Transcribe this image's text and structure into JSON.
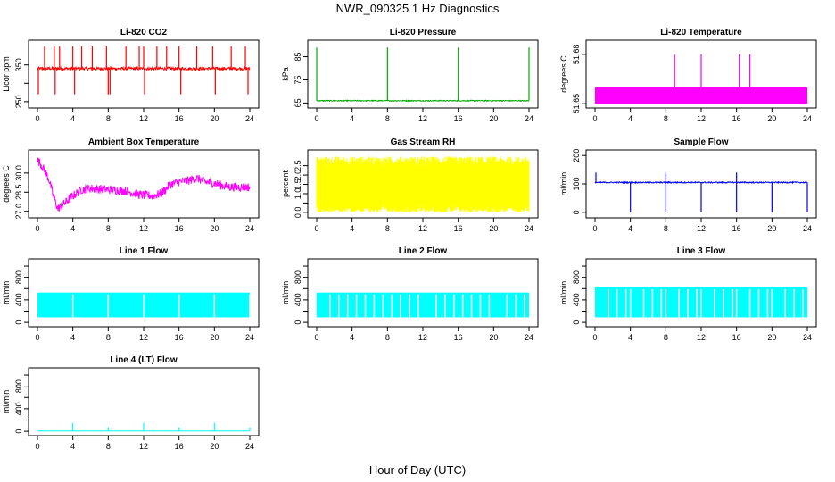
{
  "figure": {
    "title": "NWR_090325  1 Hz Diagnostics",
    "xlabel": "Hour of Day (UTC)"
  },
  "chart_data": [
    {
      "type": "line",
      "title": "Li-820 CO2",
      "ylabel": "Licor ppm",
      "color": "#ff0000",
      "xlim": [
        0,
        24
      ],
      "xticks": [
        0,
        4,
        8,
        12,
        16,
        20,
        24
      ],
      "ylim": [
        240,
        410
      ],
      "yticks": [
        250,
        300,
        350
      ],
      "ytick_labels": [
        "250",
        "",
        "350"
      ],
      "series": [
        {
          "baseline": 340,
          "noise": 4,
          "spikes_up": [
            0.8,
            1.9,
            2.5,
            4.0,
            5.0,
            6.2,
            7.8,
            10.0,
            11.5,
            12.0,
            13.5,
            14.6,
            16.0,
            18.0,
            19.8,
            21.9,
            23.5
          ],
          "spike_up_top": 400,
          "spikes_down": [
            0.1,
            2.0,
            4.2,
            8.0,
            8.2,
            12.1,
            16.2,
            20.1,
            23.8
          ],
          "spike_down_bottom": 270
        }
      ]
    },
    {
      "type": "line",
      "title": "Li-820 Pressure",
      "ylabel": "kPa",
      "color": "#00aa00",
      "xlim": [
        0,
        24
      ],
      "xticks": [
        0,
        4,
        8,
        12,
        16,
        20,
        24
      ],
      "ylim": [
        64,
        91
      ],
      "yticks": [
        65,
        75,
        85
      ],
      "series": [
        {
          "baseline": 66,
          "noise": 0.2,
          "spikes_up": [
            0.0,
            8.0,
            16.0,
            24.0
          ],
          "spike_up_top": 89
        }
      ]
    },
    {
      "type": "area",
      "title": "Li-820 Temperature",
      "ylabel": "degrees C",
      "color": "#ff00ff",
      "xlim": [
        0,
        24
      ],
      "xticks": [
        0,
        4,
        8,
        12,
        16,
        20,
        24
      ],
      "ylim": [
        51.649,
        51.687
      ],
      "yticks": [
        51.65,
        51.68
      ],
      "ytick_labels": [
        "51.65",
        "51.68"
      ],
      "band": [
        51.65,
        51.66
      ],
      "spikes_up": [
        9.0,
        12.0,
        16.3,
        17.5
      ],
      "spike_up_top": 51.68
    },
    {
      "type": "line",
      "title": "Ambient Box Temperature",
      "ylabel": "degrees C",
      "color": "#ff00ff",
      "xlim": [
        0,
        24
      ],
      "xticks": [
        0,
        4,
        8,
        12,
        16,
        20,
        24
      ],
      "ylim": [
        26.7,
        31.6
      ],
      "yticks": [
        27.0,
        28.5,
        30.0
      ],
      "ytick_labels": [
        "27.0",
        "28.5",
        "30.0"
      ],
      "series": [
        {
          "x": [
            0,
            0.3,
            0.8,
            1.3,
            1.8,
            2.3,
            3.0,
            4.0,
            5.0,
            6.0,
            8.0,
            10.0,
            11.5,
            13.0,
            14.0,
            15.0,
            16.0,
            17.0,
            18.0,
            19.0,
            20.0,
            21.0,
            22.0,
            23.0,
            24.0
          ],
          "y": [
            31.0,
            30.8,
            30.2,
            29.5,
            28.2,
            27.2,
            27.6,
            28.2,
            28.7,
            28.8,
            28.7,
            28.6,
            28.3,
            28.2,
            28.4,
            29.1,
            29.3,
            29.4,
            29.6,
            29.3,
            29.2,
            29.0,
            28.9,
            28.9,
            28.9
          ],
          "noise": 0.35
        }
      ]
    },
    {
      "type": "area",
      "title": "Gas Stream RH",
      "ylabel": "percent",
      "color": "#ffff00",
      "xlim": [
        0,
        24
      ],
      "xticks": [
        0,
        4,
        8,
        12,
        16,
        20,
        24
      ],
      "ylim": [
        -0.15,
        3.2
      ],
      "yticks": [
        0.0,
        0.5,
        1.0,
        1.5,
        2.0,
        2.5
      ],
      "ytick_labels": [
        "0.0",
        "",
        "1.0",
        "1.5",
        "2.0",
        "2.5"
      ],
      "band": [
        0.4,
        2.4
      ],
      "noise": 0.5
    },
    {
      "type": "line",
      "title": "Sample Flow",
      "ylabel": "ml/min",
      "color": "#0000ff",
      "xlim": [
        0,
        24
      ],
      "xticks": [
        0,
        4,
        8,
        12,
        16,
        20,
        24
      ],
      "ylim": [
        -10,
        210
      ],
      "yticks": [
        0,
        100,
        200
      ],
      "series": [
        {
          "baseline": 105,
          "noise": 2,
          "spikes_up": [
            0.1,
            8.0,
            16.0
          ],
          "spike_up_top": 140,
          "spikes_down": [
            4.0,
            8.0,
            12.0,
            16.0,
            20.0,
            24.0
          ],
          "spike_down_bottom": 0
        }
      ]
    },
    {
      "type": "area",
      "title": "Line 1 Flow",
      "ylabel": "ml/min",
      "color": "#00ffff",
      "xlim": [
        0,
        24
      ],
      "xticks": [
        0,
        4,
        8,
        12,
        16,
        20,
        24
      ],
      "ylim": [
        -30,
        1080
      ],
      "yticks": [
        0,
        200,
        400,
        600,
        800,
        1000
      ],
      "ytick_labels": [
        "0",
        "",
        "400",
        "",
        "800",
        ""
      ],
      "band": [
        90,
        530
      ],
      "gaps": [
        4.0,
        8.0,
        12.0,
        16.0,
        20.0,
        24.0
      ]
    },
    {
      "type": "area",
      "title": "Line 2 Flow",
      "ylabel": "ml/min",
      "color": "#00ffff",
      "xlim": [
        0,
        24
      ],
      "xticks": [
        0,
        4,
        8,
        12,
        16,
        20,
        24
      ],
      "ylim": [
        -30,
        1080
      ],
      "yticks": [
        0,
        200,
        400,
        600,
        800,
        1000
      ],
      "ytick_labels": [
        "0",
        "",
        "400",
        "",
        "800",
        ""
      ],
      "band": [
        90,
        530
      ],
      "gaps": [
        1.5,
        2.5,
        3.5,
        4.5,
        5.5,
        6.5,
        7.5,
        8.5,
        9.5,
        10.5,
        11.5,
        13.5,
        14.5,
        15.5,
        16.5,
        17.5,
        18.5,
        19.5,
        21.5,
        22.5,
        23.5
      ]
    },
    {
      "type": "area",
      "title": "Line 3 Flow",
      "ylabel": "ml/min",
      "color": "#00ffff",
      "xlim": [
        0,
        24
      ],
      "xticks": [
        0,
        4,
        8,
        12,
        16,
        20,
        24
      ],
      "ylim": [
        -30,
        1080
      ],
      "yticks": [
        0,
        200,
        400,
        600,
        800,
        1000
      ],
      "ytick_labels": [
        "0",
        "",
        "400",
        "",
        "800",
        ""
      ],
      "band": [
        90,
        620
      ],
      "gaps": [
        1.5,
        2.5,
        3.5,
        4.0,
        5.5,
        6.5,
        7.5,
        8.0,
        9.5,
        10.5,
        11.5,
        12.0,
        13.5,
        14.5,
        15.5,
        16.0,
        17.5,
        18.5,
        19.5,
        20.0,
        21.5,
        22.5,
        23.5
      ]
    },
    {
      "type": "line",
      "title": "Line 4 (LT) Flow",
      "ylabel": "ml/min",
      "color": "#00ffff",
      "xlim": [
        0,
        24
      ],
      "xticks": [
        0,
        4,
        8,
        12,
        16,
        20,
        24
      ],
      "ylim": [
        -30,
        1080
      ],
      "yticks": [
        0,
        200,
        400,
        600,
        800,
        1000
      ],
      "ytick_labels": [
        "0",
        "",
        "400",
        "",
        "800",
        ""
      ],
      "series": [
        {
          "baseline": 5,
          "noise": 2,
          "spikes_up": [
            4.0,
            12.0,
            20.0
          ],
          "spike_up_top": 150,
          "small_spikes": [
            8.0,
            16.0,
            24.0
          ],
          "small_spike_top": 70
        }
      ]
    }
  ]
}
